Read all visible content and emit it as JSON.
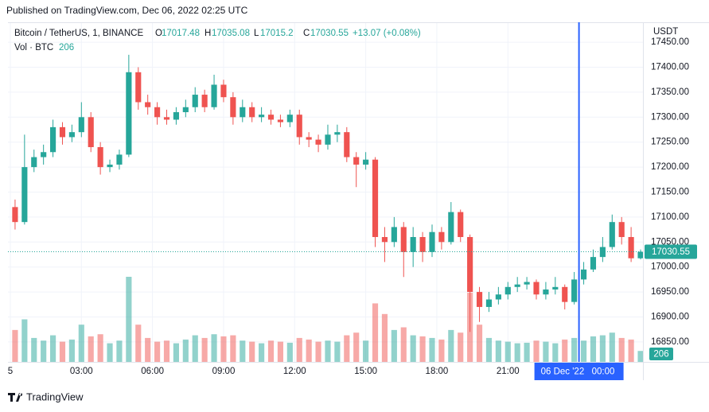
{
  "header": "Published on TradingView.com, Dec 06, 2022 02:25 UTC",
  "footer": "TradingView",
  "chart_data": {
    "type": "candlestick",
    "title": "Bitcoin / TetherUS, 1, BINANCE",
    "ohlc_labels": [
      "O",
      "H",
      "L",
      "C"
    ],
    "change": "+13.07 (+0.08%)",
    "volume_label": "Vol · BTC",
    "currency": "USDT",
    "up_color": "#26a69a",
    "down_color": "#ef5350",
    "x": [
      0.2,
      0.6,
      1.0,
      1.4,
      1.8,
      2.2,
      2.6,
      3.0,
      3.4,
      3.8,
      4.2,
      4.6,
      5.0,
      5.4,
      5.8,
      6.2,
      6.6,
      7.0,
      7.4,
      7.8,
      8.2,
      8.6,
      9.0,
      9.4,
      9.8,
      10.2,
      10.6,
      11.0,
      11.4,
      11.8,
      12.2,
      12.6,
      13.0,
      13.4,
      13.8,
      14.2,
      14.6,
      15.0,
      15.4,
      15.8,
      16.2,
      16.6,
      17.0,
      17.4,
      17.8,
      18.2,
      18.6,
      19.0,
      19.4,
      19.8,
      20.2,
      20.6,
      21.0,
      21.4,
      21.8,
      22.2,
      22.6,
      23.0,
      23.4,
      23.8,
      24.2,
      24.6,
      25.0,
      25.4,
      25.8,
      26.2,
      26.6
    ],
    "open": [
      17120,
      17090,
      17200,
      17220,
      17230,
      17280,
      17260,
      17270,
      17300,
      17240,
      17200,
      17205,
      17225,
      17390,
      17330,
      17320,
      17300,
      17295,
      17310,
      17320,
      17345,
      17320,
      17365,
      17340,
      17300,
      17320,
      17300,
      17305,
      17295,
      17290,
      17305,
      17260,
      17255,
      17245,
      17265,
      17270,
      17220,
      17205,
      17215,
      17060,
      17050,
      17080,
      17030,
      17060,
      17030,
      17070,
      17050,
      17110,
      17060,
      16950,
      16920,
      16935,
      16945,
      16960,
      16965,
      16970,
      16945,
      16955,
      16960,
      16930,
      16975,
      16995,
      17020,
      17040,
      17090,
      17060,
      17017.48
    ],
    "high": [
      17135,
      17265,
      17235,
      17245,
      17295,
      17290,
      17285,
      17330,
      17310,
      17250,
      17215,
      17235,
      17425,
      17400,
      17345,
      17330,
      17315,
      17320,
      17335,
      17360,
      17355,
      17385,
      17375,
      17350,
      17335,
      17330,
      17320,
      17315,
      17305,
      17315,
      17315,
      17270,
      17265,
      17285,
      17285,
      17280,
      17230,
      17230,
      17220,
      17080,
      17100,
      17090,
      17080,
      17070,
      17085,
      17080,
      17130,
      17115,
      17065,
      16960,
      16950,
      16960,
      16970,
      16980,
      16980,
      16975,
      16970,
      16980,
      16965,
      16990,
      17010,
      17035,
      17060,
      17105,
      17100,
      17080,
      17035.08
    ],
    "low": [
      17075,
      17085,
      17190,
      17205,
      17220,
      17245,
      17250,
      17260,
      17230,
      17185,
      17190,
      17195,
      17220,
      17315,
      17305,
      17285,
      17285,
      17285,
      17300,
      17310,
      17310,
      17315,
      17330,
      17285,
      17290,
      17290,
      17290,
      17285,
      17280,
      17280,
      17245,
      17240,
      17230,
      17235,
      17250,
      17210,
      17160,
      17195,
      17040,
      17010,
      17040,
      16980,
      17000,
      17010,
      17020,
      17035,
      17045,
      17050,
      16870,
      16890,
      16910,
      16925,
      16935,
      16950,
      16955,
      16935,
      16935,
      16945,
      16915,
      16925,
      16965,
      16990,
      17010,
      17035,
      17045,
      17010,
      17015.2
    ],
    "close": [
      17090,
      17200,
      17220,
      17230,
      17280,
      17260,
      17270,
      17300,
      17240,
      17200,
      17205,
      17225,
      17390,
      17330,
      17320,
      17300,
      17295,
      17310,
      17320,
      17345,
      17320,
      17365,
      17340,
      17300,
      17320,
      17300,
      17305,
      17295,
      17290,
      17305,
      17260,
      17255,
      17245,
      17265,
      17270,
      17220,
      17205,
      17215,
      17060,
      17050,
      17080,
      17030,
      17060,
      17030,
      17070,
      17050,
      17110,
      17060,
      16950,
      16920,
      16935,
      16945,
      16960,
      16965,
      16970,
      16945,
      16955,
      16960,
      16930,
      16975,
      16995,
      17020,
      17040,
      17090,
      17060,
      17017.48,
      17030.55
    ],
    "volume": [
      600,
      800,
      450,
      400,
      500,
      380,
      420,
      700,
      480,
      520,
      350,
      400,
      1600,
      700,
      450,
      380,
      400,
      350,
      420,
      500,
      450,
      520,
      480,
      500,
      400,
      380,
      350,
      400,
      380,
      360,
      450,
      420,
      380,
      400,
      380,
      500,
      550,
      400,
      1100,
      900,
      600,
      650,
      500,
      480,
      450,
      420,
      600,
      550,
      1300,
      700,
      450,
      400,
      380,
      350,
      360,
      400,
      380,
      350,
      420,
      450,
      400,
      480,
      500,
      550,
      450,
      420,
      206
    ],
    "xlim": [
      -0.1,
      26.7
    ],
    "ylim": [
      16810,
      17490
    ],
    "xticks": [
      {
        "value": 0,
        "label": "5"
      },
      {
        "value": 3,
        "label": "03:00"
      },
      {
        "value": 6,
        "label": "06:00"
      },
      {
        "value": 9,
        "label": "09:00"
      },
      {
        "value": 12,
        "label": "12:00"
      },
      {
        "value": 15,
        "label": "15:00"
      },
      {
        "value": 18,
        "label": "18:00"
      },
      {
        "value": 21,
        "label": "21:00"
      }
    ],
    "yticks": [
      {
        "value": 16850,
        "label": "16850.00"
      },
      {
        "value": 16900,
        "label": "16900.00"
      },
      {
        "value": 16950,
        "label": "16950.00"
      },
      {
        "value": 17000,
        "label": "17000.00"
      },
      {
        "value": 17050,
        "label": "17050.00"
      },
      {
        "value": 17100,
        "label": "17100.00"
      },
      {
        "value": 17150,
        "label": "17150.00"
      },
      {
        "value": 17200,
        "label": "17200.00"
      },
      {
        "value": 17250,
        "label": "17250.00"
      },
      {
        "value": 17300,
        "label": "17300.00"
      },
      {
        "value": 17350,
        "label": "17350.00"
      },
      {
        "value": 17400,
        "label": "17400.00"
      },
      {
        "value": 17450,
        "label": "17450.00"
      }
    ],
    "grid": true,
    "crosshair": {
      "x": 24,
      "date": "06 Dec '22",
      "time": "00:00"
    }
  }
}
